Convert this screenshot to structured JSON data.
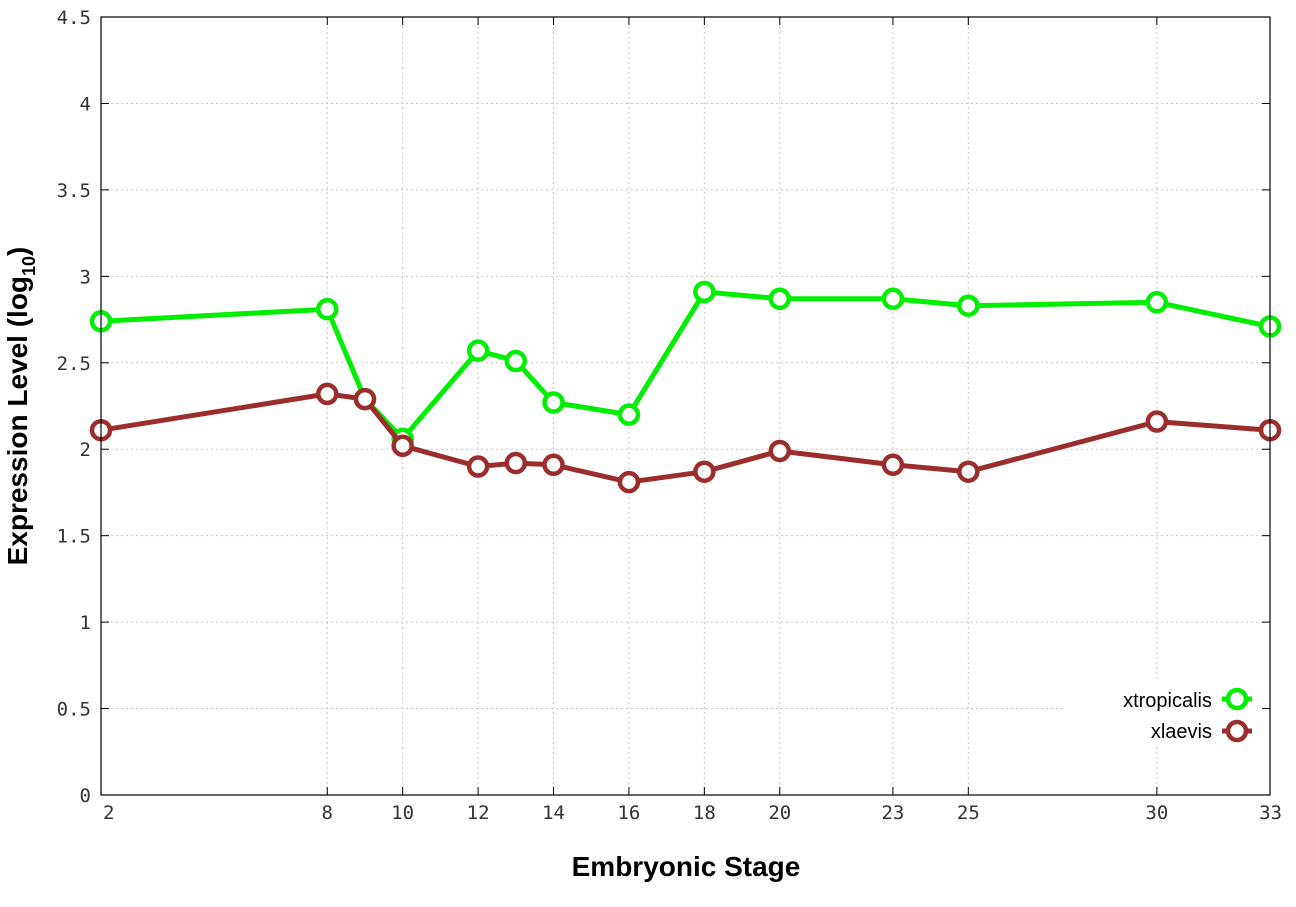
{
  "chart_data": {
    "type": "line",
    "xlabel": "Embryonic Stage",
    "ylabel": {
      "main": "Expression Level (log",
      "subscript": "10",
      "close": ")"
    },
    "ylim": [
      0,
      4.5
    ],
    "yticks": [
      "0",
      "0.5",
      "1",
      "1.5",
      "2",
      "2.5",
      "3",
      "3.5",
      "4",
      "4.5"
    ],
    "x": [
      2,
      8,
      9,
      10,
      12,
      13,
      14,
      16,
      18,
      20,
      23,
      25,
      30,
      33
    ],
    "xticks": [
      "2",
      "8",
      "10",
      "12",
      "14",
      "16",
      "18",
      "20",
      "23",
      "25",
      "30",
      "33"
    ],
    "grid": true,
    "legend_position": "bottom-right",
    "series": [
      {
        "name": "xtropicalis",
        "color": "#00ee00",
        "values": [
          2.74,
          2.81,
          2.29,
          2.06,
          2.57,
          2.51,
          2.27,
          2.2,
          2.91,
          2.87,
          2.87,
          2.83,
          2.85,
          2.71
        ]
      },
      {
        "name": "xlaevis",
        "color": "#9b2d2d",
        "values": [
          2.11,
          2.32,
          2.29,
          2.02,
          1.9,
          1.92,
          1.91,
          1.81,
          1.87,
          1.99,
          1.91,
          1.87,
          2.16,
          2.11
        ]
      }
    ]
  }
}
